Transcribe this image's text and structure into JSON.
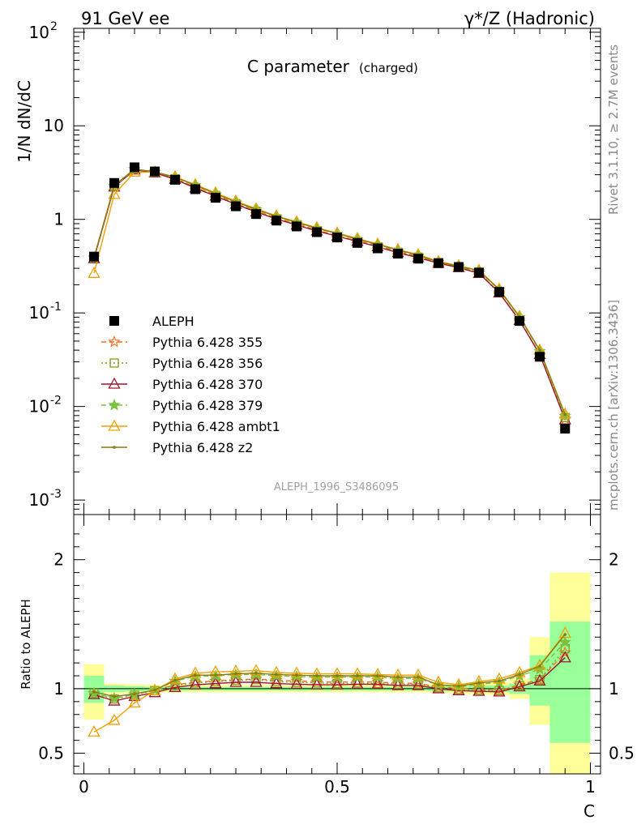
{
  "header": {
    "left": "91 GeV ee",
    "right": "γ*/Z (Hadronic)"
  },
  "side_labels": {
    "rivet": "Rivet 3.1.10, ≥ 2.7M events",
    "mcplots": "mcplots.cern.ch [arXiv:1306.3436]"
  },
  "chart_data": [
    {
      "type": "line",
      "title": "C parameter",
      "title_suffix": "(charged)",
      "ylabel": "1/N dN/dC",
      "yscale": "log",
      "ylim": [
        0.0007,
        110
      ],
      "xlim": [
        -0.02,
        1.02
      ],
      "yticks": [
        {
          "label": "10",
          "sup": "-3",
          "value": 0.001
        },
        {
          "label": "10",
          "sup": "-2",
          "value": 0.01
        },
        {
          "label": "10",
          "sup": "-1",
          "value": 0.1
        },
        {
          "label": "1",
          "sup": "",
          "value": 1
        },
        {
          "label": "10",
          "sup": "",
          "value": 10
        },
        {
          "label": "10",
          "sup": "2",
          "value": 100
        }
      ],
      "watermark": "ALEPH_1996_S3486095",
      "x": [
        0.02,
        0.06,
        0.1,
        0.14,
        0.18,
        0.22,
        0.26,
        0.3,
        0.34,
        0.38,
        0.42,
        0.46,
        0.5,
        0.54,
        0.58,
        0.62,
        0.66,
        0.7,
        0.74,
        0.78,
        0.82,
        0.86,
        0.9,
        0.95
      ],
      "data": {
        "name": "ALEPH",
        "color": "#000000",
        "values": [
          0.4,
          2.45,
          3.6,
          3.25,
          2.65,
          2.1,
          1.7,
          1.38,
          1.14,
          0.97,
          0.84,
          0.73,
          0.64,
          0.56,
          0.49,
          0.43,
          0.38,
          0.34,
          0.31,
          0.27,
          0.168,
          0.082,
          0.034,
          0.0058
        ]
      },
      "series": [
        {
          "name": "Pythia 6.428 355",
          "color": "#ff6a1a",
          "dash": "6,4",
          "marker": "star-open",
          "values": [
            0.39,
            2.27,
            3.43,
            3.21,
            2.73,
            2.2,
            1.81,
            1.48,
            1.23,
            1.03,
            0.89,
            0.77,
            0.67,
            0.59,
            0.52,
            0.45,
            0.4,
            0.347,
            0.31,
            0.27,
            0.165,
            0.084,
            0.036,
            0.0074
          ]
        },
        {
          "name": "Pythia 6.428 356",
          "color": "#7fa31f",
          "dash": "2,3",
          "marker": "square-open",
          "values": [
            0.39,
            2.25,
            3.42,
            3.2,
            2.72,
            2.19,
            1.8,
            1.47,
            1.22,
            1.02,
            0.88,
            0.76,
            0.66,
            0.58,
            0.51,
            0.445,
            0.395,
            0.345,
            0.31,
            0.27,
            0.166,
            0.084,
            0.036,
            0.0076
          ]
        },
        {
          "name": "Pythia 6.428 370",
          "color": "#a0142d",
          "dash": "",
          "marker": "triangle-open",
          "values": [
            0.38,
            2.22,
            3.38,
            3.15,
            2.68,
            2.16,
            1.77,
            1.45,
            1.2,
            1.01,
            0.87,
            0.75,
            0.66,
            0.58,
            0.51,
            0.44,
            0.39,
            0.34,
            0.305,
            0.265,
            0.164,
            0.083,
            0.036,
            0.0072
          ]
        },
        {
          "name": "Pythia 6.428 379",
          "color": "#7cc13d",
          "dash": "6,4",
          "marker": "star-filled",
          "values": [
            0.39,
            2.26,
            3.43,
            3.22,
            2.8,
            2.3,
            1.87,
            1.53,
            1.27,
            1.07,
            0.92,
            0.8,
            0.7,
            0.61,
            0.535,
            0.465,
            0.41,
            0.35,
            0.315,
            0.28,
            0.176,
            0.09,
            0.039,
            0.0079
          ]
        },
        {
          "name": "Pythia 6.428 ambt1",
          "color": "#f0a000",
          "dash": "",
          "marker": "triangle-open",
          "values": [
            0.265,
            1.85,
            3.2,
            3.2,
            2.85,
            2.35,
            1.92,
            1.57,
            1.3,
            1.09,
            0.94,
            0.815,
            0.715,
            0.625,
            0.545,
            0.475,
            0.42,
            0.355,
            0.32,
            0.285,
            0.18,
            0.092,
            0.04,
            0.0083
          ]
        },
        {
          "name": "Pythia 6.428 z2",
          "color": "#8a7a14",
          "dash": "",
          "marker": "dot",
          "values": [
            0.39,
            2.3,
            3.45,
            3.22,
            2.82,
            2.32,
            1.88,
            1.54,
            1.28,
            1.08,
            0.93,
            0.805,
            0.705,
            0.615,
            0.54,
            0.47,
            0.415,
            0.35,
            0.317,
            0.283,
            0.178,
            0.091,
            0.04,
            0.0082
          ]
        }
      ]
    },
    {
      "type": "line",
      "ylabel": "Ratio to ALEPH",
      "xlabel": "C",
      "xlim": [
        -0.02,
        1.02
      ],
      "ylim": [
        0.34,
        2.35
      ],
      "xticks": [
        {
          "label": "0",
          "value": 0
        },
        {
          "label": "0.5",
          "value": 0.5
        },
        {
          "label": "1",
          "value": 1
        }
      ],
      "yticks": [
        {
          "label": "0.5",
          "value": 0.5
        },
        {
          "label": "1",
          "value": 1
        },
        {
          "label": "2",
          "value": 2
        }
      ],
      "bands": [
        {
          "x0": 0.0,
          "x1": 0.04,
          "y_lo": 0.76,
          "y_hi": 1.19,
          "g_lo": 0.89,
          "g_hi": 1.1
        },
        {
          "x0": 0.04,
          "x1": 0.08,
          "y_lo": 0.96,
          "y_hi": 1.04,
          "g_lo": 0.975,
          "g_hi": 1.025
        },
        {
          "x0": 0.08,
          "x1": 0.12,
          "y_lo": 0.965,
          "y_hi": 1.035,
          "g_lo": 0.98,
          "g_hi": 1.02
        },
        {
          "x0": 0.12,
          "x1": 0.16,
          "y_lo": 0.97,
          "y_hi": 1.03,
          "g_lo": 0.985,
          "g_hi": 1.015
        },
        {
          "x0": 0.16,
          "x1": 0.2,
          "y_lo": 0.97,
          "y_hi": 1.03,
          "g_lo": 0.985,
          "g_hi": 1.015
        },
        {
          "x0": 0.2,
          "x1": 0.24,
          "y_lo": 0.97,
          "y_hi": 1.03,
          "g_lo": 0.985,
          "g_hi": 1.015
        },
        {
          "x0": 0.24,
          "x1": 0.28,
          "y_lo": 0.97,
          "y_hi": 1.03,
          "g_lo": 0.985,
          "g_hi": 1.015
        },
        {
          "x0": 0.28,
          "x1": 0.32,
          "y_lo": 0.97,
          "y_hi": 1.03,
          "g_lo": 0.985,
          "g_hi": 1.015
        },
        {
          "x0": 0.32,
          "x1": 0.36,
          "y_lo": 0.97,
          "y_hi": 1.03,
          "g_lo": 0.985,
          "g_hi": 1.015
        },
        {
          "x0": 0.36,
          "x1": 0.4,
          "y_lo": 0.97,
          "y_hi": 1.03,
          "g_lo": 0.985,
          "g_hi": 1.015
        },
        {
          "x0": 0.4,
          "x1": 0.44,
          "y_lo": 0.97,
          "y_hi": 1.03,
          "g_lo": 0.985,
          "g_hi": 1.015
        },
        {
          "x0": 0.44,
          "x1": 0.48,
          "y_lo": 0.97,
          "y_hi": 1.03,
          "g_lo": 0.985,
          "g_hi": 1.015
        },
        {
          "x0": 0.48,
          "x1": 0.52,
          "y_lo": 0.97,
          "y_hi": 1.03,
          "g_lo": 0.985,
          "g_hi": 1.015
        },
        {
          "x0": 0.52,
          "x1": 0.56,
          "y_lo": 0.97,
          "y_hi": 1.03,
          "g_lo": 0.985,
          "g_hi": 1.015
        },
        {
          "x0": 0.56,
          "x1": 0.6,
          "y_lo": 0.97,
          "y_hi": 1.03,
          "g_lo": 0.985,
          "g_hi": 1.015
        },
        {
          "x0": 0.6,
          "x1": 0.64,
          "y_lo": 0.97,
          "y_hi": 1.03,
          "g_lo": 0.985,
          "g_hi": 1.015
        },
        {
          "x0": 0.64,
          "x1": 0.68,
          "y_lo": 0.97,
          "y_hi": 1.03,
          "g_lo": 0.985,
          "g_hi": 1.015
        },
        {
          "x0": 0.68,
          "x1": 0.72,
          "y_lo": 0.965,
          "y_hi": 1.035,
          "g_lo": 0.98,
          "g_hi": 1.02
        },
        {
          "x0": 0.72,
          "x1": 0.76,
          "y_lo": 0.96,
          "y_hi": 1.04,
          "g_lo": 0.98,
          "g_hi": 1.02
        },
        {
          "x0": 0.76,
          "x1": 0.8,
          "y_lo": 0.955,
          "y_hi": 1.045,
          "g_lo": 0.975,
          "g_hi": 1.025
        },
        {
          "x0": 0.8,
          "x1": 0.84,
          "y_lo": 0.95,
          "y_hi": 1.05,
          "g_lo": 0.975,
          "g_hi": 1.025
        },
        {
          "x0": 0.84,
          "x1": 0.88,
          "y_lo": 0.92,
          "y_hi": 1.08,
          "g_lo": 0.96,
          "g_hi": 1.04
        },
        {
          "x0": 0.88,
          "x1": 0.92,
          "y_lo": 0.88,
          "y_hi": 1.12,
          "g_lo": 0.94,
          "g_hi": 1.06
        },
        {
          "x0": 0.88,
          "x1": 0.92,
          "y_lo": 0.72,
          "y_hi": 1.4,
          "g_lo": 0.87,
          "g_hi": 1.26
        },
        {
          "x0": 0.92,
          "x1": 1.0,
          "y_lo": 0.34,
          "y_hi": 1.9,
          "g_lo": 0.58,
          "g_hi": 1.52
        }
      ],
      "series": [
        {
          "name": "Pythia 6.428 355",
          "values": [
            0.965,
            0.925,
            0.955,
            0.99,
            1.03,
            1.05,
            1.06,
            1.07,
            1.075,
            1.065,
            1.06,
            1.055,
            1.05,
            1.055,
            1.05,
            1.045,
            1.04,
            1.015,
            1.0,
            0.995,
            0.985,
            1.03,
            1.07,
            1.28
          ]
        },
        {
          "name": "Pythia 6.428 356",
          "values": [
            0.965,
            0.92,
            0.95,
            0.985,
            1.025,
            1.045,
            1.055,
            1.065,
            1.07,
            1.055,
            1.05,
            1.045,
            1.04,
            1.045,
            1.04,
            1.035,
            1.035,
            1.01,
            0.995,
            0.99,
            0.985,
            1.025,
            1.07,
            1.31
          ]
        },
        {
          "name": "Pythia 6.428 370",
          "values": [
            0.955,
            0.905,
            0.94,
            0.97,
            1.01,
            1.03,
            1.04,
            1.05,
            1.05,
            1.04,
            1.035,
            1.03,
            1.03,
            1.035,
            1.035,
            1.025,
            1.025,
            1.0,
            0.985,
            0.98,
            0.975,
            1.015,
            1.06,
            1.24
          ]
        },
        {
          "name": "Pythia 6.428 379",
          "values": [
            0.965,
            0.925,
            0.955,
            0.99,
            1.06,
            1.095,
            1.1,
            1.11,
            1.11,
            1.1,
            1.095,
            1.09,
            1.09,
            1.09,
            1.09,
            1.08,
            1.08,
            1.03,
            1.015,
            1.035,
            1.05,
            1.1,
            1.15,
            1.36
          ]
        },
        {
          "name": "Pythia 6.428 ambt1",
          "values": [
            0.665,
            0.755,
            0.89,
            0.985,
            1.075,
            1.12,
            1.13,
            1.135,
            1.14,
            1.125,
            1.12,
            1.115,
            1.115,
            1.115,
            1.11,
            1.105,
            1.105,
            1.05,
            1.03,
            1.055,
            1.075,
            1.125,
            1.18,
            1.43
          ]
        },
        {
          "name": "Pythia 6.428 z2",
          "values": [
            0.975,
            0.94,
            0.96,
            0.99,
            1.065,
            1.105,
            1.105,
            1.115,
            1.12,
            1.11,
            1.105,
            1.1,
            1.1,
            1.1,
            1.1,
            1.09,
            1.09,
            1.03,
            1.02,
            1.045,
            1.06,
            1.11,
            1.175,
            1.42
          ]
        }
      ]
    }
  ]
}
